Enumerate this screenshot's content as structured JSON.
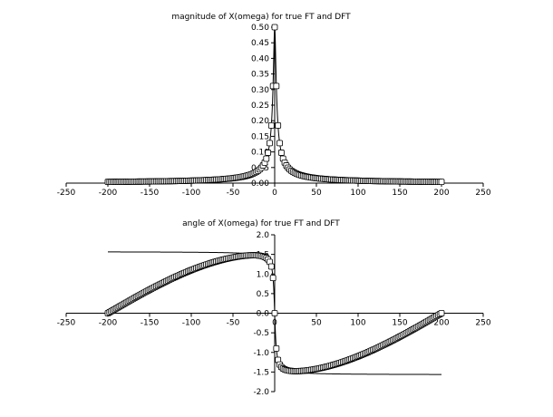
{
  "chart_data": [
    {
      "type": "line",
      "title": "magnitude of X(omega) for true FT and DFT",
      "xlim": [
        -250,
        250
      ],
      "ylim": [
        0,
        0.5
      ],
      "xticks": [
        -250,
        -200,
        -150,
        -100,
        -50,
        0,
        50,
        100,
        150,
        200,
        250
      ],
      "yticks": [
        0,
        0.05,
        0.1,
        0.15,
        0.2,
        0.25,
        0.3,
        0.35,
        0.4,
        0.45,
        0.5
      ],
      "xtick_labels": [
        "-250",
        "-200",
        "-150",
        "-100",
        "-50",
        "0",
        "50",
        "100",
        "150",
        "200",
        "250"
      ],
      "ytick_labels": [
        "0.00",
        "0.05",
        "0.10",
        "0.15",
        "0.20",
        "0.25",
        "0.30",
        "0.35",
        "0.40",
        "0.45",
        "0.50"
      ],
      "grid": false,
      "series": [
        {
          "style": "line",
          "color": "#000000",
          "formula": "1/sqrt(1+(2*pi*f/10)^2)/2",
          "x_range": [
            -200,
            200
          ]
        },
        {
          "style": "square-markers",
          "color": "#000000",
          "formula": "1/sqrt(1+(2*pi*f/10)^2)/2",
          "x_range": [
            -200,
            200
          ],
          "x_step": 2
        }
      ]
    },
    {
      "type": "line",
      "title": "angle of X(omega) for true FT and DFT",
      "xlim": [
        -250,
        250
      ],
      "ylim": [
        -2,
        2
      ],
      "xticks": [
        -250,
        -200,
        -150,
        -100,
        -50,
        0,
        50,
        100,
        150,
        200,
        250
      ],
      "yticks": [
        -2,
        -1.5,
        -1,
        -0.5,
        0,
        0.5,
        1,
        1.5,
        2
      ],
      "xtick_labels": [
        "-250",
        "-200",
        "-150",
        "-100",
        "-50",
        "0",
        "50",
        "100",
        "150",
        "200",
        "250"
      ],
      "ytick_labels": [
        "-2.0",
        "-1.5",
        "-1.0",
        "-0.5",
        "0.0",
        "0.5",
        "1.0",
        "1.5",
        "2.0"
      ],
      "grid": false,
      "series": [
        {
          "style": "line",
          "color": "#000000",
          "formula": "-atan(2*pi*f/10)",
          "x_range": [
            -200,
            200
          ]
        },
        {
          "style": "square-markers",
          "color": "#000000",
          "formula": "DFT phase, approx -atan(2*pi*f/10)*cos(pi*f/400), 0 at f=+/-200",
          "x_range": [
            -200,
            200
          ],
          "x_step": 2
        }
      ]
    }
  ]
}
